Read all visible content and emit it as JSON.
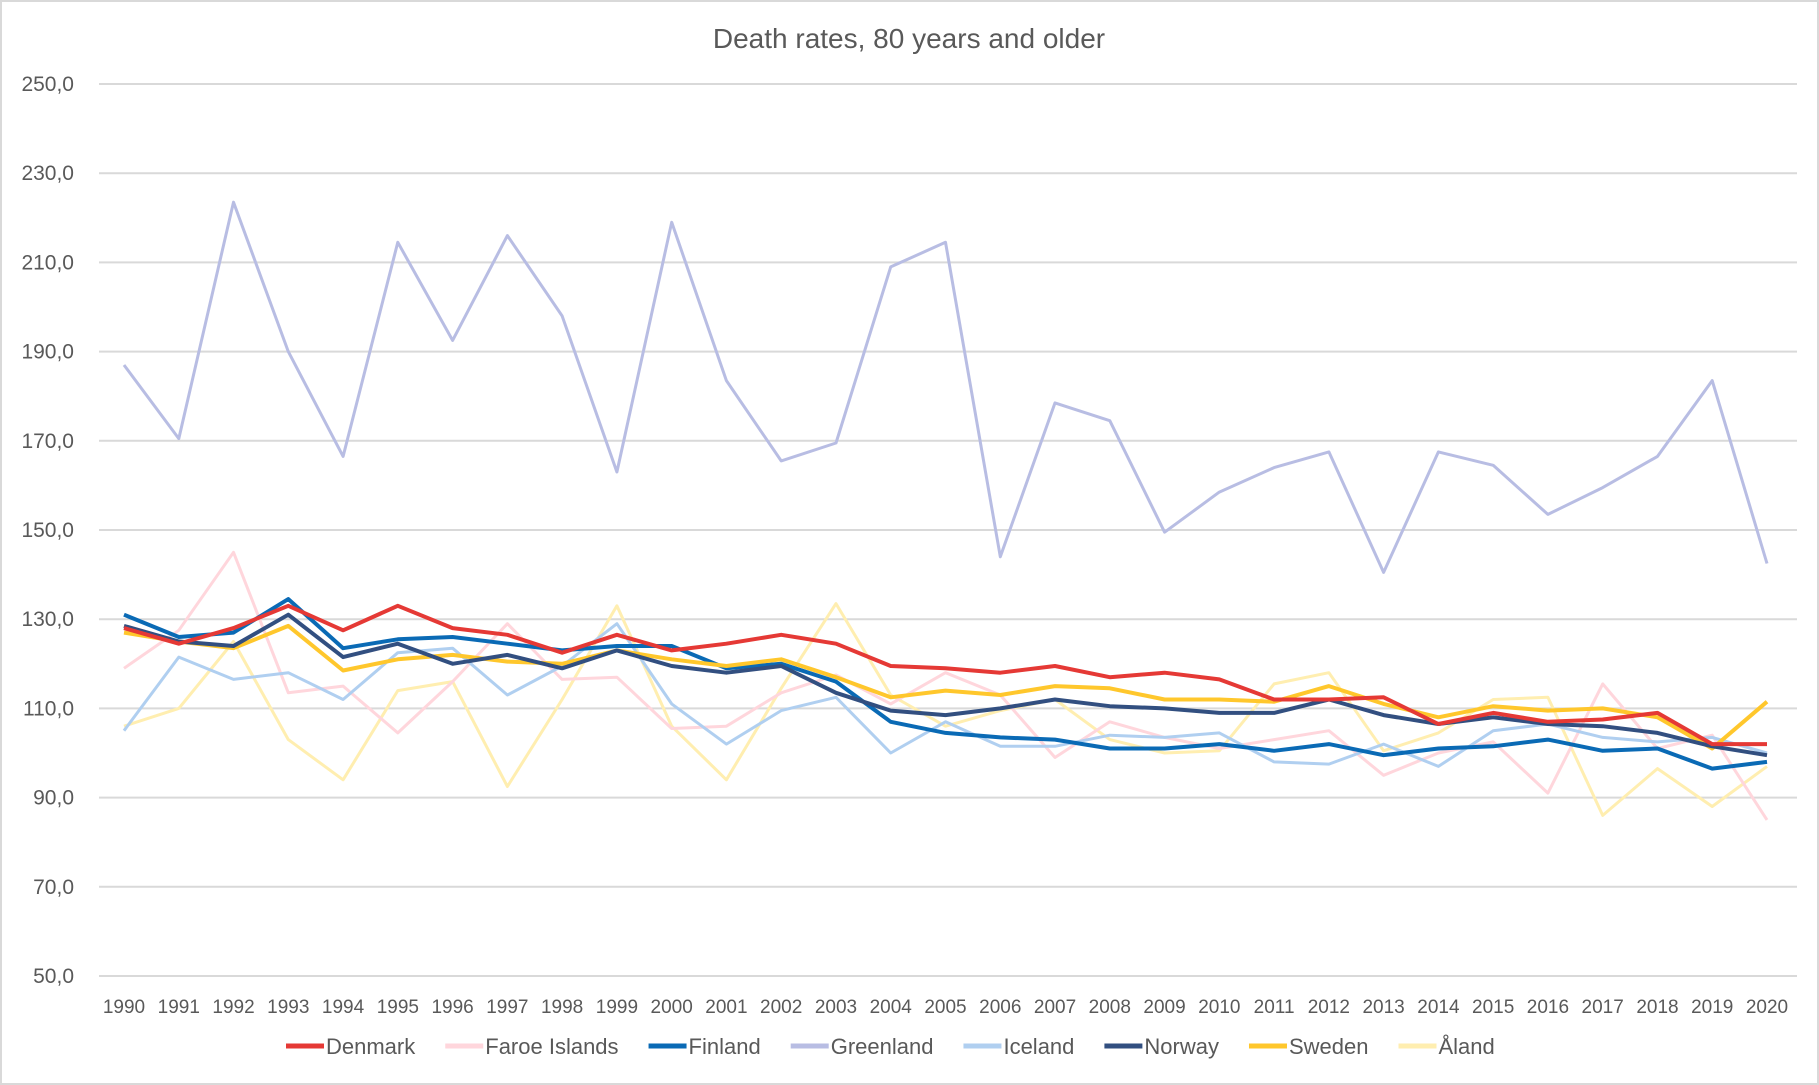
{
  "chart_data": {
    "type": "line",
    "title": "Death rates, 80 years and older",
    "xlabel": "",
    "ylabel": "",
    "ylim": [
      50,
      250
    ],
    "yticks": [
      "50,0",
      "70,0",
      "90,0",
      "110,0",
      "130,0",
      "150,0",
      "170,0",
      "190,0",
      "210,0",
      "230,0",
      "250,0"
    ],
    "ytick_values": [
      50,
      70,
      90,
      110,
      130,
      150,
      170,
      190,
      210,
      230,
      250
    ],
    "grid": true,
    "legend_position": "bottom",
    "categories": [
      "1990",
      "1991",
      "1992",
      "1993",
      "1994",
      "1995",
      "1996",
      "1997",
      "1998",
      "1999",
      "2000",
      "2001",
      "2002",
      "2003",
      "2004",
      "2005",
      "2006",
      "2007",
      "2008",
      "2009",
      "2010",
      "2011",
      "2012",
      "2013",
      "2014",
      "2015",
      "2016",
      "2017",
      "2018",
      "2019",
      "2020"
    ],
    "series": [
      {
        "name": "Denmark",
        "color": "#e53935",
        "width": 4,
        "values": [
          128.0,
          124.5,
          128.0,
          133.0,
          127.5,
          133.0,
          128.0,
          126.5,
          122.5,
          126.5,
          123.0,
          124.5,
          126.5,
          124.5,
          119.5,
          119.0,
          118.0,
          119.5,
          117.0,
          118.0,
          116.5,
          112.0,
          112.0,
          112.5,
          106.5,
          109.0,
          107.0,
          107.5,
          109.0,
          102.0,
          102.0
        ]
      },
      {
        "name": "Faroe Islands",
        "color": "#ffd6dc",
        "width": 3,
        "values": [
          119.0,
          127.5,
          145.0,
          113.5,
          115.0,
          104.5,
          116.0,
          129.0,
          116.5,
          117.0,
          105.5,
          106.0,
          113.5,
          117.5,
          111.0,
          118.0,
          113.0,
          99.0,
          107.0,
          103.5,
          101.0,
          103.0,
          105.0,
          95.0,
          100.0,
          102.5,
          91.0,
          115.5,
          101.0,
          104.0,
          85.0
        ]
      },
      {
        "name": "Finland",
        "color": "#0a6ab5",
        "width": 4,
        "values": [
          131.0,
          126.0,
          127.0,
          134.5,
          123.5,
          125.5,
          126.0,
          124.5,
          123.0,
          124.0,
          124.0,
          119.0,
          120.0,
          116.0,
          107.0,
          104.5,
          103.5,
          103.0,
          101.0,
          101.0,
          102.0,
          100.5,
          102.0,
          99.5,
          101.0,
          101.5,
          103.0,
          100.5,
          101.0,
          96.5,
          98.0
        ]
      },
      {
        "name": "Greenland",
        "color": "#b8bde3",
        "width": 3,
        "values": [
          187.0,
          170.5,
          223.5,
          190.0,
          166.5,
          214.5,
          192.5,
          216.0,
          198.0,
          163.0,
          219.0,
          183.5,
          165.5,
          169.5,
          209.0,
          214.5,
          144.0,
          178.5,
          174.5,
          149.5,
          158.5,
          164.0,
          167.5,
          140.5,
          167.5,
          164.5,
          153.5,
          159.5,
          166.5,
          183.5,
          142.5
        ]
      },
      {
        "name": "Iceland",
        "color": "#b0cff0",
        "width": 3,
        "values": [
          105.0,
          121.5,
          116.5,
          118.0,
          112.0,
          122.5,
          123.5,
          113.0,
          119.5,
          129.0,
          111.0,
          102.0,
          109.5,
          112.5,
          100.0,
          107.0,
          101.5,
          101.5,
          104.0,
          103.5,
          104.5,
          98.0,
          97.5,
          102.0,
          97.0,
          105.0,
          106.5,
          103.5,
          102.5,
          103.5,
          100.0
        ]
      },
      {
        "name": "Norway",
        "color": "#324f80",
        "width": 4,
        "values": [
          128.5,
          125.0,
          124.0,
          131.0,
          121.5,
          124.5,
          120.0,
          122.0,
          119.0,
          123.0,
          119.5,
          118.0,
          119.5,
          113.5,
          109.5,
          108.5,
          110.0,
          112.0,
          110.5,
          110.0,
          109.0,
          109.0,
          112.0,
          108.5,
          106.5,
          108.0,
          106.5,
          106.0,
          104.5,
          101.5,
          99.5
        ]
      },
      {
        "name": "Sweden",
        "color": "#ffc72c",
        "width": 4,
        "values": [
          127.0,
          125.0,
          123.5,
          128.5,
          118.5,
          121.0,
          122.0,
          120.5,
          120.0,
          123.0,
          121.0,
          119.5,
          121.0,
          117.0,
          112.5,
          114.0,
          113.0,
          115.0,
          114.5,
          112.0,
          112.0,
          111.5,
          115.0,
          111.0,
          108.0,
          110.5,
          109.5,
          110.0,
          108.0,
          101.0,
          111.5
        ]
      },
      {
        "name": "Åland",
        "color": "#ffeeb0",
        "width": 3,
        "values": [
          106.0,
          110.0,
          125.0,
          103.0,
          94.0,
          114.0,
          116.0,
          92.5,
          112.0,
          133.0,
          106.0,
          94.0,
          114.5,
          133.5,
          113.0,
          106.0,
          109.5,
          112.0,
          103.0,
          100.0,
          100.5,
          115.5,
          118.0,
          100.5,
          104.5,
          112.0,
          112.5,
          86.0,
          96.5,
          88.0,
          97.0
        ]
      }
    ]
  }
}
